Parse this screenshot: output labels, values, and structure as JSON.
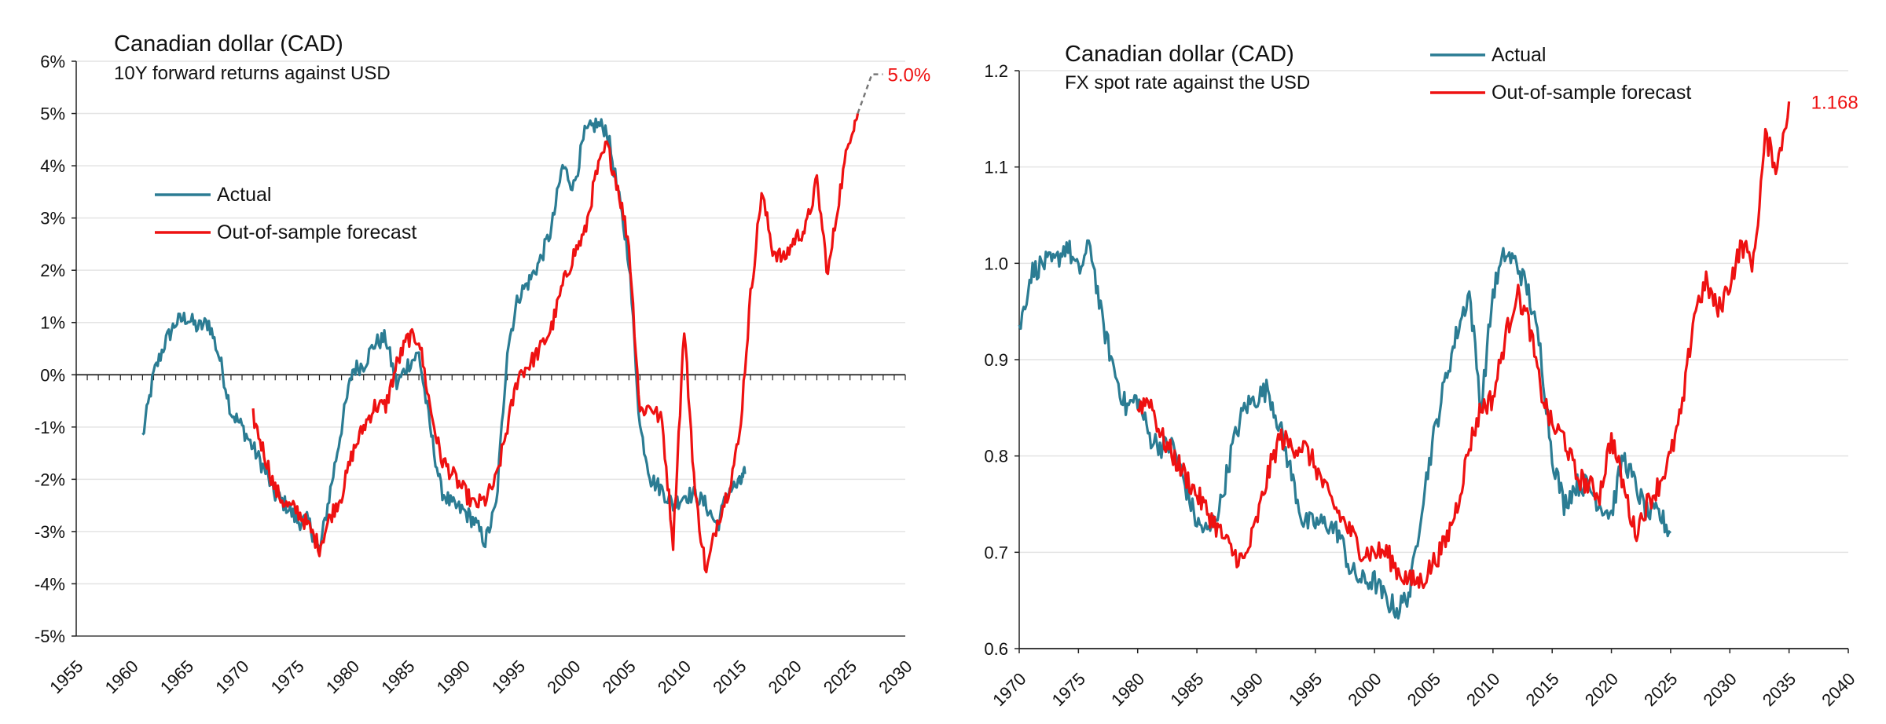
{
  "colors": {
    "actual": "#2b7c93",
    "forecast": "#ee1111",
    "grid": "#e4e4e4",
    "axis": "#222222",
    "dashed": "#777777"
  },
  "chart_data": [
    {
      "type": "line",
      "title": "Canadian dollar (CAD)",
      "subtitle": "10Y forward returns against USD",
      "xlim": [
        1955,
        2030
      ],
      "ylim": [
        -5,
        6
      ],
      "x_ticks": [
        "1955",
        "1960",
        "1965",
        "1970",
        "1975",
        "1980",
        "1985",
        "1990",
        "1995",
        "2000",
        "2005",
        "2010",
        "2015",
        "2020",
        "2025",
        "2030"
      ],
      "y_ticks": [
        "-5%",
        "-4%",
        "-3%",
        "-2%",
        "-1%",
        "0%",
        "1%",
        "2%",
        "3%",
        "4%",
        "5%",
        "6%"
      ],
      "legend": [
        "Actual",
        "Out-of-sample forecast"
      ],
      "end_label": "5.0%",
      "end_value": 5.0,
      "series": [
        {
          "name": "Actual",
          "x": [
            1961,
            1962,
            1963,
            1964,
            1965,
            1966,
            1967,
            1968,
            1969,
            1970,
            1971,
            1972,
            1973,
            1974,
            1975,
            1976,
            1977,
            1978,
            1979,
            1980,
            1981,
            1982,
            1983,
            1984,
            1985,
            1986,
            1987,
            1988,
            1989,
            1990,
            1991,
            1992,
            1993,
            1994,
            1995,
            1996,
            1997,
            1998,
            1999,
            2000,
            2001,
            2002,
            2003,
            2004,
            2005,
            2006,
            2007,
            2008,
            2009,
            2010,
            2011,
            2012,
            2013,
            2014,
            2015,
            2015.5
          ],
          "y": [
            -1.2,
            0.0,
            0.6,
            1.0,
            1.1,
            0.9,
            1.0,
            0.3,
            -0.7,
            -1.0,
            -1.4,
            -1.8,
            -2.3,
            -2.5,
            -2.8,
            -2.8,
            -3.4,
            -2.2,
            -1.0,
            0.1,
            0.2,
            0.6,
            0.7,
            -0.2,
            0.2,
            0.4,
            -1.0,
            -2.2,
            -2.5,
            -2.6,
            -2.8,
            -3.2,
            -2.5,
            0.5,
            1.5,
            1.8,
            2.2,
            2.8,
            4.0,
            3.6,
            4.6,
            4.8,
            4.7,
            3.5,
            2.2,
            -1.0,
            -2.0,
            -2.2,
            -2.5,
            -2.3,
            -2.3,
            -2.5,
            -2.9,
            -2.2,
            -2.1,
            -1.9
          ]
        },
        {
          "name": "Out-of-sample forecast",
          "x": [
            1971,
            1972,
            1973,
            1974,
            1975,
            1976,
            1977,
            1978,
            1979,
            1980,
            1981,
            1982,
            1983,
            1984,
            1985,
            1986,
            1987,
            1988,
            1989,
            1990,
            1991,
            1992,
            1993,
            1994,
            1995,
            1996,
            1997,
            1998,
            1999,
            2000,
            2001,
            2002,
            2003,
            2004,
            2005,
            2006,
            2007,
            2008,
            2009,
            2010,
            2011,
            2012,
            2013,
            2014,
            2015,
            2016,
            2017,
            2018,
            2019,
            2020,
            2021,
            2022,
            2023,
            2024,
            2025,
            2025.7
          ],
          "y": [
            -0.8,
            -1.5,
            -2.2,
            -2.5,
            -2.6,
            -2.9,
            -3.3,
            -2.7,
            -2.3,
            -1.5,
            -1.0,
            -0.6,
            -0.6,
            0.2,
            0.7,
            0.7,
            -0.6,
            -1.6,
            -1.9,
            -2.2,
            -2.5,
            -2.4,
            -2.0,
            -1.0,
            0.0,
            0.2,
            0.5,
            0.9,
            1.7,
            2.3,
            2.7,
            3.8,
            4.4,
            3.6,
            2.5,
            -0.7,
            -0.6,
            -0.9,
            -3.2,
            0.9,
            -2.3,
            -3.8,
            -2.8,
            -2.2,
            -1.2,
            1.5,
            3.5,
            2.4,
            2.2,
            2.6,
            2.8,
            3.7,
            1.9,
            3.4,
            4.6,
            5.0
          ]
        }
      ]
    },
    {
      "type": "line",
      "title": "Canadian dollar (CAD)",
      "subtitle": "FX spot rate against the USD",
      "xlim": [
        1970,
        2040
      ],
      "ylim": [
        0.6,
        1.2
      ],
      "x_ticks": [
        "1970",
        "1975",
        "1980",
        "1985",
        "1990",
        "1995",
        "2000",
        "2005",
        "2010",
        "2015",
        "2020",
        "2025",
        "2030",
        "2035",
        "2040"
      ],
      "y_ticks": [
        "0.6",
        "0.7",
        "0.8",
        "0.9",
        "1.0",
        "1.1",
        "1.2"
      ],
      "legend": [
        "Actual",
        "Out-of-sample forecast"
      ],
      "end_label": "1.168",
      "end_value": 1.168,
      "series": [
        {
          "name": "Actual",
          "x": [
            1970,
            1971,
            1972,
            1973,
            1974,
            1975,
            1976,
            1977,
            1978,
            1979,
            1980,
            1981,
            1982,
            1983,
            1984,
            1985,
            1986,
            1987,
            1988,
            1989,
            1990,
            1991,
            1992,
            1993,
            1994,
            1995,
            1996,
            1997,
            1998,
            1999,
            2000,
            2001,
            2002,
            2003,
            2004,
            2005,
            2006,
            2007,
            2008,
            2009,
            2010,
            2011,
            2012,
            2013,
            2014,
            2015,
            2016,
            2017,
            2018,
            2019,
            2020,
            2021,
            2022,
            2023,
            2024,
            2025
          ],
          "y": [
            0.93,
            0.99,
            1.0,
            1.0,
            1.02,
            0.99,
            1.02,
            0.94,
            0.89,
            0.85,
            0.86,
            0.82,
            0.81,
            0.81,
            0.77,
            0.73,
            0.72,
            0.75,
            0.81,
            0.85,
            0.86,
            0.87,
            0.83,
            0.78,
            0.73,
            0.73,
            0.73,
            0.72,
            0.68,
            0.67,
            0.67,
            0.65,
            0.64,
            0.66,
            0.75,
            0.82,
            0.88,
            0.93,
            0.97,
            0.85,
            0.97,
            1.01,
            1.0,
            0.97,
            0.91,
            0.8,
            0.75,
            0.77,
            0.77,
            0.75,
            0.74,
            0.8,
            0.77,
            0.74,
            0.74,
            0.72
          ]
        },
        {
          "name": "Out-of-sample forecast",
          "x": [
            1980,
            1981,
            1982,
            1983,
            1984,
            1985,
            1986,
            1987,
            1988,
            1989,
            1990,
            1991,
            1992,
            1993,
            1994,
            1995,
            1996,
            1997,
            1998,
            1999,
            2000,
            2001,
            2002,
            2003,
            2004,
            2005,
            2006,
            2007,
            2008,
            2009,
            2010,
            2011,
            2012,
            2013,
            2014,
            2015,
            2016,
            2017,
            2018,
            2019,
            2020,
            2021,
            2022,
            2023,
            2024,
            2025,
            2026,
            2027,
            2028,
            2029,
            2030,
            2031,
            2032,
            2033,
            2034,
            2035
          ],
          "y": [
            0.85,
            0.86,
            0.82,
            0.8,
            0.78,
            0.76,
            0.74,
            0.72,
            0.7,
            0.69,
            0.73,
            0.78,
            0.82,
            0.81,
            0.81,
            0.79,
            0.76,
            0.74,
            0.72,
            0.7,
            0.7,
            0.7,
            0.68,
            0.67,
            0.67,
            0.69,
            0.71,
            0.75,
            0.81,
            0.85,
            0.86,
            0.92,
            0.97,
            0.94,
            0.87,
            0.83,
            0.82,
            0.78,
            0.77,
            0.76,
            0.82,
            0.77,
            0.72,
            0.75,
            0.77,
            0.8,
            0.85,
            0.95,
            0.98,
            0.95,
            0.98,
            1.02,
            1.0,
            1.13,
            1.1,
            1.168
          ]
        }
      ]
    }
  ]
}
